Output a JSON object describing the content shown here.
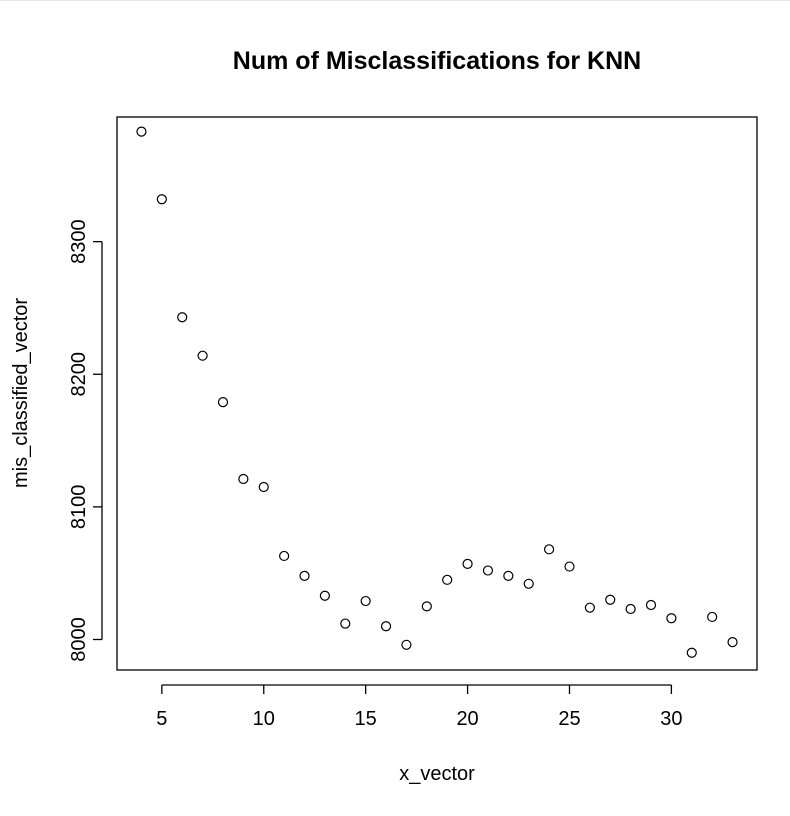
{
  "chart_data": {
    "type": "scatter",
    "title": "Num of Misclassifications for KNN",
    "xlabel": "x_vector",
    "ylabel": "mis_classified_vector",
    "x": [
      4,
      5,
      6,
      7,
      8,
      9,
      10,
      11,
      12,
      13,
      14,
      15,
      16,
      17,
      18,
      19,
      20,
      21,
      22,
      23,
      24,
      25,
      26,
      27,
      28,
      29,
      30,
      31,
      32,
      33
    ],
    "y": [
      8383,
      8332,
      8243,
      8214,
      8179,
      8121,
      8115,
      8063,
      8048,
      8033,
      8012,
      8029,
      8010,
      7996,
      8025,
      8045,
      8057,
      8052,
      8048,
      8042,
      8068,
      8055,
      8024,
      8030,
      8023,
      8026,
      8016,
      7990,
      8017,
      7998
    ],
    "xlim": [
      2.8,
      34.2
    ],
    "ylim": [
      7977,
      8394
    ],
    "xticks": [
      "5",
      "10",
      "15",
      "20",
      "25",
      "30"
    ],
    "yticks": [
      "8000",
      "8100",
      "8200",
      "8300"
    ],
    "grid": false,
    "legend": "none",
    "marker": "open-circle",
    "colors": {
      "foreground": "#000000",
      "background": "#ffffff"
    }
  }
}
